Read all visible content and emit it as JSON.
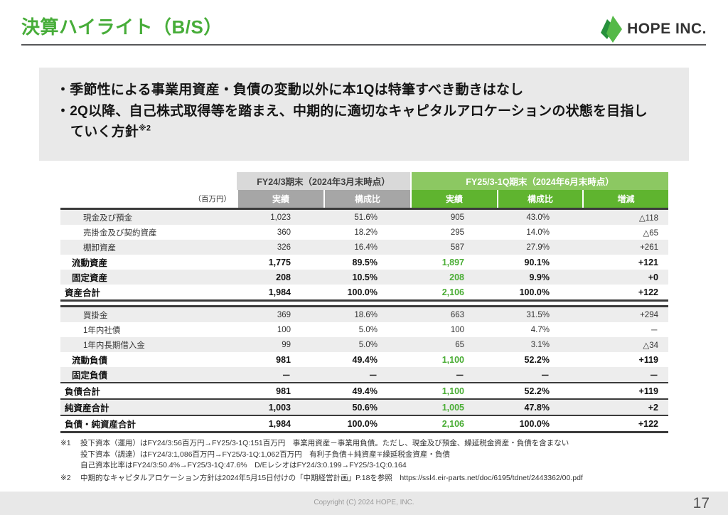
{
  "header": {
    "title": "決算ハイライト（B/S）",
    "logo_text": "HOPE INC."
  },
  "highlights": {
    "bullet_marker": "・",
    "bullets": [
      {
        "lines": [
          "季節性による事業用資産・負債の変動以外に本1Qは特筆すべき動きはなし"
        ],
        "sup": ""
      },
      {
        "lines": [
          "2Q以降、自己株式取得等を踏まえ、中期的に適切なキャピタルアロケーションの状態を目指し",
          "ていく方針"
        ],
        "sup": "※2"
      }
    ]
  },
  "table": {
    "unit_label": "（百万円）",
    "groups": [
      {
        "label": "FY24/3期末（2024年3月末時点）",
        "theme": "gray"
      },
      {
        "label": "FY25/3-1Q期末（2024年6月末時点）",
        "theme": "green"
      }
    ],
    "sub_headers": [
      {
        "label": "実績",
        "theme": "gray"
      },
      {
        "label": "構成比",
        "theme": "gray"
      },
      {
        "label": "実績",
        "theme": "green"
      },
      {
        "label": "構成比",
        "theme": "green"
      },
      {
        "label": "増減",
        "theme": "green"
      }
    ],
    "sections": [
      {
        "name": "assets",
        "rows": [
          {
            "label": "現金及び預金",
            "style": "detail",
            "values": [
              "1,023",
              "51.6%",
              "905",
              "43.0%",
              "△118"
            ],
            "fy25_green": false,
            "border_bottom": ""
          },
          {
            "label": "売掛金及び契約資産",
            "style": "detail",
            "values": [
              "360",
              "18.2%",
              "295",
              "14.0%",
              "△65"
            ],
            "fy25_green": false,
            "border_bottom": ""
          },
          {
            "label": "棚卸資産",
            "style": "detail",
            "values": [
              "326",
              "16.4%",
              "587",
              "27.9%",
              "+261"
            ],
            "fy25_green": false,
            "border_bottom": ""
          },
          {
            "label": "流動資産",
            "style": "subtotal",
            "values": [
              "1,775",
              "89.5%",
              "1,897",
              "90.1%",
              "+121"
            ],
            "fy25_green": true,
            "border_bottom": ""
          },
          {
            "label": "固定資産",
            "style": "subtotal",
            "values": [
              "208",
              "10.5%",
              "208",
              "9.9%",
              "+0"
            ],
            "fy25_green": true,
            "border_bottom": ""
          },
          {
            "label": "資産合計",
            "style": "total",
            "values": [
              "1,984",
              "100.0%",
              "2,106",
              "100.0%",
              "+122"
            ],
            "fy25_green": true,
            "border_bottom": ""
          }
        ]
      },
      {
        "name": "liabilities-and-net-assets",
        "rows": [
          {
            "label": "買掛金",
            "style": "detail",
            "values": [
              "369",
              "18.6%",
              "663",
              "31.5%",
              "+294"
            ],
            "fy25_green": false,
            "border_bottom": ""
          },
          {
            "label": "1年内社債",
            "style": "detail",
            "values": [
              "100",
              "5.0%",
              "100",
              "4.7%",
              "－"
            ],
            "fy25_green": false,
            "border_bottom": ""
          },
          {
            "label": "1年内長期借入金",
            "style": "detail",
            "values": [
              "99",
              "5.0%",
              "65",
              "3.1%",
              "△34"
            ],
            "fy25_green": false,
            "border_bottom": ""
          },
          {
            "label": "流動負債",
            "style": "subtotal",
            "values": [
              "981",
              "49.4%",
              "1,100",
              "52.2%",
              "+119"
            ],
            "fy25_green": true,
            "border_bottom": ""
          },
          {
            "label": "固定負債",
            "style": "subtotal",
            "values": [
              "－",
              "－",
              "－",
              "－",
              "－"
            ],
            "fy25_green": false,
            "border_bottom": "thick"
          },
          {
            "label": "負債合計",
            "style": "total",
            "values": [
              "981",
              "49.4%",
              "1,100",
              "52.2%",
              "+119"
            ],
            "fy25_green": true,
            "border_bottom": "thick"
          },
          {
            "label": "純資産合計",
            "style": "total",
            "values": [
              "1,003",
              "50.6%",
              "1,005",
              "47.8%",
              "+2"
            ],
            "fy25_green": true,
            "border_bottom": "thick"
          },
          {
            "label": "負債・純資産合計",
            "style": "total",
            "values": [
              "1,984",
              "100.0%",
              "2,106",
              "100.0%",
              "+122"
            ],
            "fy25_green": true,
            "border_bottom": ""
          }
        ]
      }
    ]
  },
  "footnotes": [
    {
      "marker": "※1",
      "lines": [
        "投下資本（運用）はFY24/3:56百万円→FY25/3-1Q:151百万円　事業用資産－事業用負債。ただし、現金及び預金、繰延税金資産・負債を含まない",
        "投下資本（調達）はFY24/3:1,086百万円→FY25/3-1Q:1,062百万円　有利子負債＋純資産∓繰延税金資産・負債",
        "自己資本比率はFY24/3:50.4%→FY25/3-1Q:47.6%　D/EレシオはFY24/3:0.199→FY25/3-1Q:0.164"
      ]
    },
    {
      "marker": "※2",
      "lines": [
        "中期的なキャピタルアロケーション方針は2024年5月15日付けの「中期経営計画」P.18を参照　https://ssl4.eir-parts.net/doc/6195/tdnet/2443362/00.pdf"
      ]
    }
  ],
  "footer": {
    "copyright": "Copyright (C) 2024 HOPE, INC.",
    "page_number": "17"
  },
  "colors": {
    "accent_green": "#47ad39",
    "group_header_green": "#8cc862",
    "subheader_green": "#5fb42f",
    "group_header_gray": "#d9d9d9",
    "subheader_gray": "#a6a6a6",
    "value_green": "#4aad35",
    "row_shade": "#ededed",
    "footer_bg": "#e8e8e8"
  }
}
